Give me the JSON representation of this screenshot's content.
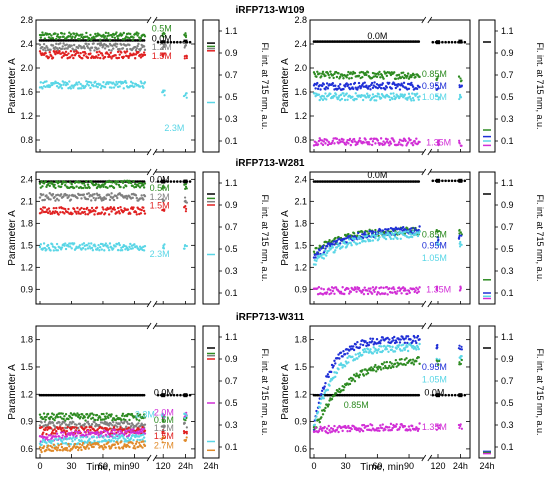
{
  "figure": {
    "row_titles": [
      "iRFP713-W109",
      "iRFP713-W281",
      "iRFP713-W311"
    ],
    "ylabel_left": "Parameter A",
    "ylabel_right": "Fl. int. at 715 nm, a.u.",
    "xlabel": "Time, min",
    "x_ticks": [
      "0",
      "30",
      "60",
      "90",
      "120",
      "24h"
    ],
    "strip_tick_label": "24h",
    "right_ticks": [
      "1.1",
      "0.9",
      "0.7",
      "0.5",
      "0.3",
      "0.1"
    ]
  },
  "chart_data": [
    {
      "id": "w109-left",
      "type": "scatter",
      "row": 0,
      "side": "left",
      "ylim": [
        0.6,
        2.8
      ],
      "yticks": [
        0.8,
        1.2,
        1.6,
        2.0,
        2.4,
        2.8
      ],
      "series": [
        {
          "name": "0.0M",
          "color": "#000000",
          "start": 2.46,
          "plateau": 2.46,
          "tau": 1,
          "dotted": true,
          "late": 2.43,
          "h24": 2.44,
          "fl": 0.99
        },
        {
          "name": "0.5M",
          "color": "#2e8b22",
          "start": 2.53,
          "plateau": 2.53,
          "tau": 1,
          "late": 2.55,
          "h24": 2.55,
          "fl": 0.96
        },
        {
          "name": "1.2M",
          "color": "#808080",
          "start": 2.35,
          "plateau": 2.35,
          "tau": 1,
          "late": 2.36,
          "h24": 2.37,
          "fl": 0.94
        },
        {
          "name": "1.5M",
          "color": "#e02020",
          "start": 2.22,
          "plateau": 2.22,
          "tau": 1,
          "late": 2.2,
          "h24": 2.2,
          "fl": 0.92
        },
        {
          "name": "2.3M",
          "color": "#5ad6e6",
          "start": 1.72,
          "plateau": 1.72,
          "tau": 1,
          "late": 1.58,
          "h24": 1.55,
          "fl": 0.45
        }
      ],
      "labels": [
        {
          "text": "0.5M",
          "color": "#2e8b22",
          "lx": 116,
          "ly": 2.66
        },
        {
          "text": "0.0M",
          "color": "#000000",
          "lx": 116,
          "ly": 2.49
        },
        {
          "text": "1.2M",
          "color": "#808080",
          "lx": 116,
          "ly": 2.35
        },
        {
          "text": "1.5M",
          "color": "#e02020",
          "lx": 116,
          "ly": 2.2
        },
        {
          "text": "2.3M",
          "color": "#5ad6e6",
          "lx": 128,
          "ly": 1.0
        }
      ]
    },
    {
      "id": "w109-right",
      "type": "scatter",
      "row": 0,
      "side": "right",
      "ylim": [
        0.6,
        2.8
      ],
      "yticks": [
        0.8,
        1.2,
        1.6,
        2.0,
        2.4,
        2.8
      ],
      "series": [
        {
          "name": "0.0M",
          "color": "#000000",
          "start": 2.44,
          "plateau": 2.44,
          "tau": 1,
          "dotted": true,
          "late": 2.43,
          "h24": 2.44,
          "fl": 1.0
        },
        {
          "name": "0.85M",
          "color": "#2e8b22",
          "start": 1.88,
          "plateau": 1.88,
          "tau": 1,
          "late": 1.82,
          "h24": 1.82,
          "fl": 0.2
        },
        {
          "name": "0.95M",
          "color": "#1f2fd6",
          "start": 1.7,
          "plateau": 1.7,
          "tau": 1,
          "late": 1.68,
          "h24": 1.68,
          "fl": 0.14
        },
        {
          "name": "1.05M",
          "color": "#5ad6e6",
          "start": 1.52,
          "plateau": 1.52,
          "tau": 1,
          "late": 1.5,
          "h24": 1.52,
          "fl": 0.1
        },
        {
          "name": "1.35M",
          "color": "#d12fd6",
          "start": 0.77,
          "plateau": 0.77,
          "tau": 1,
          "late": 0.75,
          "h24": 0.75,
          "fl": 0.06
        }
      ],
      "labels": [
        {
          "text": "0.0M",
          "color": "#000000",
          "lx": 60,
          "ly": 2.53
        },
        {
          "text": "0.85M",
          "color": "#2e8b22",
          "lx": 114,
          "ly": 1.9
        },
        {
          "text": "0.95M",
          "color": "#1f2fd6",
          "lx": 114,
          "ly": 1.7
        },
        {
          "text": "1.05M",
          "color": "#5ad6e6",
          "lx": 114,
          "ly": 1.52
        },
        {
          "text": "1.35M",
          "color": "#d12fd6",
          "lx": 118,
          "ly": 0.76
        }
      ]
    },
    {
      "id": "w281-left",
      "type": "scatter",
      "row": 1,
      "side": "left",
      "ylim": [
        0.7,
        2.5
      ],
      "yticks": [
        0.9,
        1.2,
        1.5,
        1.8,
        2.1,
        2.4
      ],
      "series": [
        {
          "name": "0.0M",
          "color": "#000000",
          "start": 2.37,
          "plateau": 2.37,
          "tau": 1,
          "dotted": true,
          "late": 2.37,
          "h24": 2.37,
          "fl": 1.0
        },
        {
          "name": "0.5M",
          "color": "#2e8b22",
          "start": 2.33,
          "plateau": 2.33,
          "tau": 1,
          "late": 2.3,
          "h24": 2.3,
          "fl": 0.96
        },
        {
          "name": "1.2M",
          "color": "#808080",
          "start": 2.16,
          "plateau": 2.16,
          "tau": 1,
          "late": 2.12,
          "h24": 2.12,
          "fl": 0.93
        },
        {
          "name": "1.5M",
          "color": "#e02020",
          "start": 1.97,
          "plateau": 1.97,
          "tau": 1,
          "late": 2.0,
          "h24": 2.0,
          "fl": 0.9
        },
        {
          "name": "2.3M",
          "color": "#5ad6e6",
          "start": 1.48,
          "plateau": 1.48,
          "tau": 1,
          "late": 1.48,
          "h24": 1.47,
          "fl": 0.45
        }
      ],
      "labels": [
        {
          "text": "0.0M",
          "color": "#000000",
          "lx": 114,
          "ly": 2.4
        },
        {
          "text": "0.5M",
          "color": "#2e8b22",
          "lx": 114,
          "ly": 2.28
        },
        {
          "text": "1.2M",
          "color": "#808080",
          "lx": 114,
          "ly": 2.16
        },
        {
          "text": "1.5M",
          "color": "#e02020",
          "lx": 114,
          "ly": 2.04
        },
        {
          "text": "2.3M",
          "color": "#5ad6e6",
          "lx": 114,
          "ly": 1.38
        }
      ]
    },
    {
      "id": "w281-right",
      "type": "scatter",
      "row": 1,
      "side": "right",
      "ylim": [
        0.7,
        2.5
      ],
      "yticks": [
        0.9,
        1.2,
        1.5,
        1.8,
        2.1,
        2.4
      ],
      "series": [
        {
          "name": "0.0M",
          "color": "#000000",
          "start": 2.37,
          "plateau": 2.37,
          "tau": 1,
          "dotted": true,
          "late": 2.38,
          "h24": 2.38,
          "fl": 1.0
        },
        {
          "name": "0.85M",
          "color": "#2e8b22",
          "start": 1.4,
          "plateau": 1.7,
          "tau": 25,
          "late": 1.68,
          "h24": 1.68,
          "fl": 0.22
        },
        {
          "name": "0.95M",
          "color": "#1f2fd6",
          "start": 1.35,
          "plateau": 1.72,
          "tau": 30,
          "late": 1.6,
          "h24": 1.6,
          "fl": 0.1
        },
        {
          "name": "1.05M",
          "color": "#5ad6e6",
          "start": 1.25,
          "plateau": 1.66,
          "tau": 28,
          "late": 1.54,
          "h24": 1.52,
          "fl": 0.07
        },
        {
          "name": "1.35M",
          "color": "#d12fd6",
          "start": 0.88,
          "plateau": 0.88,
          "tau": 1,
          "late": 0.9,
          "h24": 0.9,
          "fl": 0.05
        }
      ],
      "labels": [
        {
          "text": "0.0M",
          "color": "#000000",
          "lx": 60,
          "ly": 2.46
        },
        {
          "text": "0.85M",
          "color": "#2e8b22",
          "lx": 114,
          "ly": 1.65
        },
        {
          "text": "0.95M",
          "color": "#1f2fd6",
          "lx": 114,
          "ly": 1.5
        },
        {
          "text": "1.05M",
          "color": "#5ad6e6",
          "lx": 114,
          "ly": 1.33
        },
        {
          "text": "1.35M",
          "color": "#d12fd6",
          "lx": 118,
          "ly": 0.9
        }
      ]
    },
    {
      "id": "w311-left",
      "type": "scatter",
      "row": 2,
      "side": "left",
      "ylim": [
        0.5,
        1.95
      ],
      "yticks": [
        0.6,
        0.9,
        1.2,
        1.5,
        1.8
      ],
      "series": [
        {
          "name": "0.0M",
          "color": "#000000",
          "start": 1.19,
          "plateau": 1.19,
          "tau": 1,
          "dotted": true,
          "late": 1.19,
          "h24": 1.19,
          "fl": 1.0
        },
        {
          "name": "0.5M",
          "color": "#2e8b22",
          "start": 0.95,
          "plateau": 0.95,
          "tau": 1,
          "late": 0.93,
          "h24": 0.93,
          "fl": 0.95
        },
        {
          "name": "1.2M",
          "color": "#808080",
          "start": 0.86,
          "plateau": 0.86,
          "tau": 1,
          "late": 0.86,
          "h24": 0.86,
          "fl": 0.93
        },
        {
          "name": "1.5M",
          "color": "#e02020",
          "start": 0.8,
          "plateau": 0.8,
          "tau": 1,
          "late": 0.8,
          "h24": 0.8,
          "fl": 0.9
        },
        {
          "name": "2.0M",
          "color": "#d12fd6",
          "start": 0.72,
          "plateau": 0.8,
          "tau": 70,
          "late": 0.97,
          "h24": 0.97,
          "fl": 0.5
        },
        {
          "name": "2.3M",
          "color": "#5ad6e6",
          "start": 0.66,
          "plateau": 0.74,
          "tau": 70,
          "late": 0.96,
          "h24": 0.96,
          "fl": 0.15
        },
        {
          "name": "2.7M",
          "color": "#e08a2a",
          "start": 0.6,
          "plateau": 0.66,
          "tau": 70,
          "late": 0.7,
          "h24": 0.7,
          "fl": 0.07
        }
      ],
      "labels": [
        {
          "text": "0.0M",
          "color": "#000000",
          "lx": 118,
          "ly": 1.22
        },
        {
          "text": "2.3M",
          "color": "#5ad6e6",
          "lx": 100,
          "ly": 0.98
        },
        {
          "text": "2.0M",
          "color": "#d12fd6",
          "lx": 118,
          "ly": 1.0
        },
        {
          "text": "0.5M",
          "color": "#2e8b22",
          "lx": 118,
          "ly": 0.92
        },
        {
          "text": "1.2M",
          "color": "#808080",
          "lx": 118,
          "ly": 0.83
        },
        {
          "text": "1.5M",
          "color": "#e02020",
          "lx": 118,
          "ly": 0.74
        },
        {
          "text": "2.7M",
          "color": "#e08a2a",
          "lx": 118,
          "ly": 0.64
        }
      ]
    },
    {
      "id": "w311-right",
      "type": "scatter",
      "row": 2,
      "side": "right",
      "ylim": [
        0.5,
        1.95
      ],
      "yticks": [
        0.6,
        0.9,
        1.2,
        1.5,
        1.8
      ],
      "series": [
        {
          "name": "0.0M",
          "color": "#000000",
          "start": 1.19,
          "plateau": 1.19,
          "tau": 1,
          "dotted": true,
          "late": 1.19,
          "h24": 1.19,
          "fl": 1.0
        },
        {
          "name": "0.95M",
          "color": "#1f2fd6",
          "start": 0.85,
          "plateau": 1.8,
          "tau": 15,
          "late": 1.72,
          "h24": 1.72,
          "fl": 0.06
        },
        {
          "name": "1.05M",
          "color": "#5ad6e6",
          "start": 0.82,
          "plateau": 1.72,
          "tau": 18,
          "late": 1.6,
          "h24": 1.6,
          "fl": 0.05
        },
        {
          "name": "0.85M",
          "color": "#2e8b22",
          "start": 0.8,
          "plateau": 1.6,
          "tau": 30,
          "late": 1.55,
          "h24": 1.55,
          "fl": 0.05
        },
        {
          "name": "1.35M",
          "color": "#d12fd6",
          "start": 0.8,
          "plateau": 0.84,
          "tau": 30,
          "late": 0.84,
          "h24": 0.84,
          "fl": 0.04
        }
      ],
      "labels": [
        {
          "text": "0.95M",
          "color": "#1f2fd6",
          "lx": 114,
          "ly": 1.5
        },
        {
          "text": "1.05M",
          "color": "#5ad6e6",
          "lx": 114,
          "ly": 1.36
        },
        {
          "text": "0.0M",
          "color": "#000000",
          "lx": 114,
          "ly": 1.22
        },
        {
          "text": "0.85M",
          "color": "#2e8b22",
          "lx": 40,
          "ly": 1.08
        },
        {
          "text": "1.35M",
          "color": "#d12fd6",
          "lx": 114,
          "ly": 0.84
        }
      ]
    }
  ]
}
